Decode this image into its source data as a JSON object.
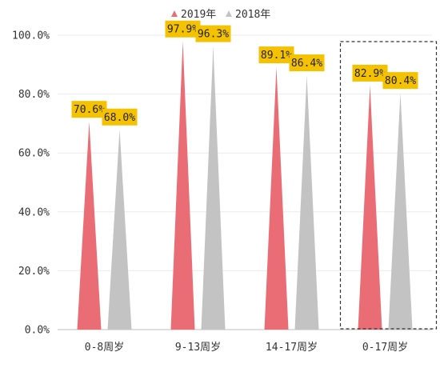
{
  "chart_data": {
    "type": "bar",
    "bar_shape": "triangle",
    "categories": [
      "0-8周岁",
      "9-13周岁",
      "14-17周岁",
      "0-17周岁"
    ],
    "series": [
      {
        "name": "2019年",
        "values": [
          70.6,
          97.9,
          89.1,
          82.9
        ],
        "color": "#ea6d76"
      },
      {
        "name": "2018年",
        "values": [
          68.0,
          96.3,
          86.4,
          80.4
        ],
        "color": "#c3c3c3"
      }
    ],
    "data_labels": [
      [
        "70.6%",
        "97.9%",
        "89.1%",
        "82.9%"
      ],
      [
        "68.0%",
        "96.3%",
        "86.4%",
        "80.4%"
      ]
    ],
    "yticks": [
      "0.0%",
      "20.0%",
      "40.0%",
      "60.0%",
      "80.0%",
      "100.0%"
    ],
    "ylim": [
      0,
      100
    ],
    "grid": true,
    "legend": "top-center",
    "highlighted_category": "0-17周岁",
    "label_box_color": "#f5c200"
  }
}
